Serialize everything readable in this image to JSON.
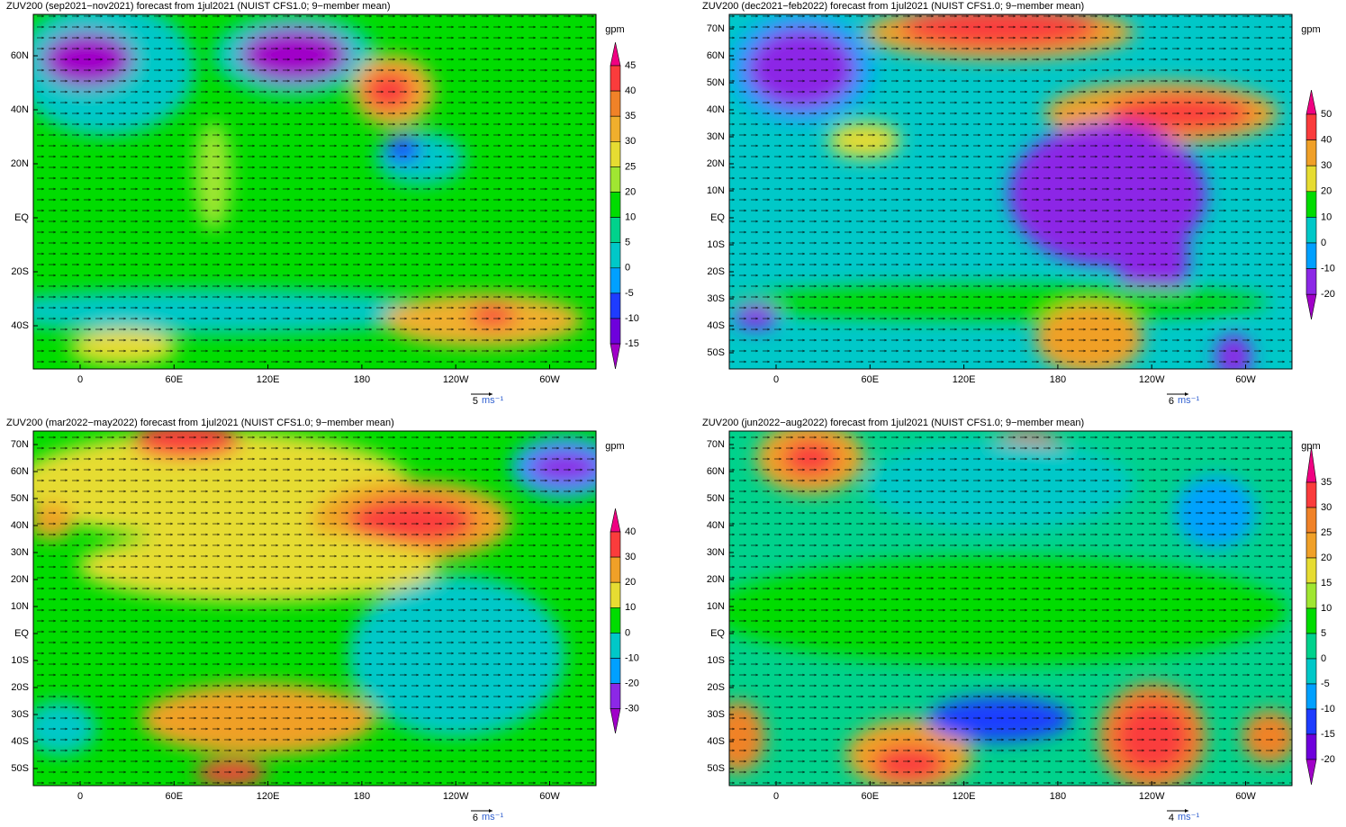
{
  "panels": [
    {
      "title": "ZUV200 (sep2021−nov2021) forecast from 1jul2021 (NUIST CFS1.0; 9−member mean)",
      "lat_labels": [
        "60N",
        "40N",
        "20N",
        "EQ",
        "20S",
        "40S"
      ],
      "lon_labels": [
        "0",
        "60E",
        "120E",
        "180",
        "120W",
        "60W"
      ],
      "unit": "gpm",
      "colorbar": {
        "levels": [
          45,
          40,
          35,
          30,
          25,
          20,
          10,
          5,
          0,
          -5,
          -10,
          -15
        ],
        "colors": [
          "#f00082",
          "#fa3c3c",
          "#f08228",
          "#f0af2d",
          "#e6dc32",
          "#a0e632",
          "#00dc00",
          "#00d28c",
          "#00c8c8",
          "#00a0ff",
          "#1e3cff",
          "#6e00dc",
          "#a000c8"
        ]
      },
      "vector_ref": {
        "value": "5",
        "unit": "ms⁻¹"
      }
    },
    {
      "title": "ZUV200 (dec2021−feb2022) forecast from 1jul2021 (NUIST CFS1.0; 9−member mean)",
      "lat_labels": [
        "70N",
        "60N",
        "50N",
        "40N",
        "30N",
        "20N",
        "10N",
        "EQ",
        "10S",
        "20S",
        "30S",
        "40S",
        "50S"
      ],
      "lon_labels": [
        "0",
        "60E",
        "120E",
        "180",
        "120W",
        "60W"
      ],
      "unit": "gpm",
      "colorbar": {
        "levels": [
          50,
          40,
          30,
          20,
          10,
          0,
          -10,
          -20
        ],
        "colors": [
          "#f00082",
          "#fa3c3c",
          "#f0a028",
          "#e6dc32",
          "#00dc00",
          "#00c8c8",
          "#00a0ff",
          "#8c28e6",
          "#a000c8"
        ]
      },
      "vector_ref": {
        "value": "6",
        "unit": "ms⁻¹"
      }
    },
    {
      "title": "ZUV200 (mar2022−may2022) forecast from 1jul2021 (NUIST CFS1.0; 9−member mean)",
      "lat_labels": [
        "70N",
        "60N",
        "50N",
        "40N",
        "30N",
        "20N",
        "10N",
        "EQ",
        "10S",
        "20S",
        "30S",
        "40S",
        "50S"
      ],
      "lon_labels": [
        "0",
        "60E",
        "120E",
        "180",
        "120W",
        "60W"
      ],
      "unit": "gpm",
      "colorbar": {
        "levels": [
          40,
          30,
          20,
          10,
          0,
          -10,
          -20,
          -30
        ],
        "colors": [
          "#f00082",
          "#fa3c3c",
          "#f0a028",
          "#e6dc32",
          "#00dc00",
          "#00c8c8",
          "#00a0ff",
          "#8c28e6",
          "#a000c8"
        ]
      },
      "vector_ref": {
        "value": "6",
        "unit": "ms⁻¹"
      }
    },
    {
      "title": "ZUV200 (jun2022−aug2022) forecast from 1jul2021 (NUIST CFS1.0; 9−member mean)",
      "lat_labels": [
        "70N",
        "60N",
        "50N",
        "40N",
        "30N",
        "20N",
        "10N",
        "EQ",
        "10S",
        "20S",
        "30S",
        "40S",
        "50S"
      ],
      "lon_labels": [
        "0",
        "60E",
        "120E",
        "180",
        "120W",
        "60W"
      ],
      "unit": "gpm",
      "colorbar": {
        "levels": [
          35,
          30,
          25,
          20,
          15,
          10,
          5,
          0,
          -5,
          -10,
          -15,
          -20
        ],
        "colors": [
          "#f00082",
          "#fa3c3c",
          "#f08228",
          "#f0a028",
          "#e6dc32",
          "#a0e632",
          "#00dc00",
          "#00d28c",
          "#00c8c8",
          "#00a0ff",
          "#1e3cff",
          "#6e00dc",
          "#a000c8"
        ]
      },
      "vector_ref": {
        "value": "4",
        "unit": "ms⁻¹"
      }
    }
  ]
}
